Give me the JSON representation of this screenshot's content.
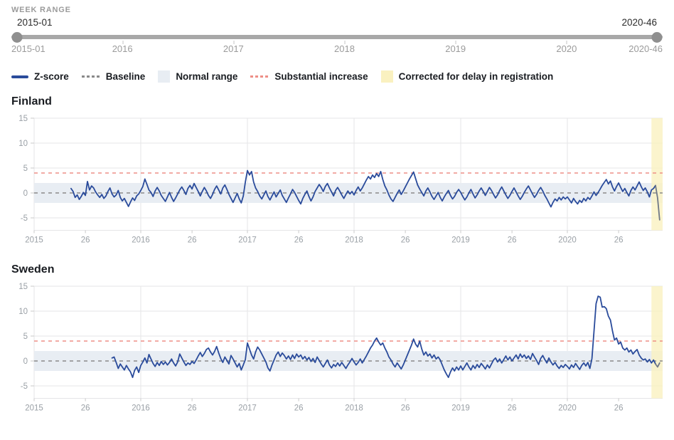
{
  "header": {
    "label": "WEEK RANGE"
  },
  "slider": {
    "start_value": "2015-01",
    "end_value": "2020-46",
    "total_weeks": 305,
    "axis_ticks": [
      {
        "label": "2015-01",
        "week": 0,
        "align": "left",
        "tickmark": false
      },
      {
        "label": "2016",
        "week": 52,
        "align": "center",
        "tickmark": true
      },
      {
        "label": "2017",
        "week": 104,
        "align": "center",
        "tickmark": true
      },
      {
        "label": "2018",
        "week": 156,
        "align": "center",
        "tickmark": true
      },
      {
        "label": "2019",
        "week": 208,
        "align": "center",
        "tickmark": true
      },
      {
        "label": "2020",
        "week": 260,
        "align": "center",
        "tickmark": true
      },
      {
        "label": "2020-46",
        "week": 305,
        "align": "right",
        "tickmark": false
      }
    ]
  },
  "colors": {
    "z_score": "#2a4b9b",
    "baseline": "#8a8a8a",
    "normal_range": "#e8edf3",
    "substantial_increase": "#ee8f87",
    "corrected_band": "#faf1c0",
    "grid": "#e5e5e7",
    "tickmark": "#c9c9c9",
    "axis_text": "#9aa0a6",
    "corrected_tail": "#6f7887"
  },
  "legend": {
    "items": [
      {
        "label": "Z-score",
        "swatch": "line",
        "color_key": "z_score"
      },
      {
        "label": "Baseline",
        "swatch": "dash",
        "color_key": "baseline"
      },
      {
        "label": "Normal range",
        "swatch": "box",
        "color_key": "normal_range"
      },
      {
        "label": "Substantial increase",
        "swatch": "dash",
        "color_key": "substantial_increase"
      },
      {
        "label": "Corrected for delay in registration",
        "swatch": "box",
        "color_key": "corrected_band"
      }
    ]
  },
  "chart_data": [
    {
      "type": "line",
      "title": "Finland",
      "series_name": "Z-score",
      "x_range": [
        "2015-01",
        "2020-46"
      ],
      "ylim": [
        -7.5,
        15
      ],
      "y_ticks": [
        15,
        10,
        5,
        0,
        -5
      ],
      "x_ticks": [
        {
          "label": "2015",
          "week": 0
        },
        {
          "label": "26",
          "week": 25
        },
        {
          "label": "2016",
          "week": 52
        },
        {
          "label": "26",
          "week": 77
        },
        {
          "label": "2017",
          "week": 104
        },
        {
          "label": "26",
          "week": 129
        },
        {
          "label": "2018",
          "week": 156
        },
        {
          "label": "26",
          "week": 181
        },
        {
          "label": "2019",
          "week": 208
        },
        {
          "label": "26",
          "week": 233
        },
        {
          "label": "2020",
          "week": 260
        },
        {
          "label": "26",
          "week": 285
        }
      ],
      "baseline": 0,
      "substantial_increase_threshold": 4,
      "normal_range": [
        -2,
        2
      ],
      "corrected_from_week": "2020-42",
      "corrected_week_offset": 301,
      "corrected_tail_points": 3,
      "start_week": "2015-19",
      "start_week_offset": 18,
      "values": [
        0.9,
        0.3,
        -0.9,
        -0.4,
        -1.3,
        -0.7,
        0.1,
        -0.5,
        2.3,
        0.6,
        1.4,
        1.0,
        0.2,
        -0.4,
        -0.9,
        -0.3,
        -1.1,
        -0.6,
        0.3,
        1.0,
        -0.2,
        -0.8,
        -0.4,
        0.5,
        -0.9,
        -1.6,
        -1.1,
        -1.9,
        -2.7,
        -1.8,
        -1.0,
        -1.5,
        -0.6,
        -0.2,
        0.5,
        1.3,
        2.8,
        1.7,
        0.6,
        0.1,
        -0.7,
        0.4,
        1.1,
        0.4,
        -0.5,
        -1.1,
        -1.7,
        -0.8,
        0.1,
        -0.9,
        -1.7,
        -1.0,
        -0.2,
        0.6,
        1.2,
        0.5,
        -0.3,
        0.9,
        1.5,
        0.8,
        1.9,
        1.1,
        0.3,
        -0.6,
        0.3,
        1.1,
        0.4,
        -0.5,
        -1.1,
        -0.3,
        0.7,
        1.4,
        0.6,
        -0.2,
        1.0,
        1.6,
        0.7,
        -0.3,
        -1.1,
        -1.9,
        -1.0,
        -0.1,
        -1.2,
        -2.0,
        -0.6,
        2.2,
        4.5,
        3.6,
        4.3,
        2.2,
        1.0,
        0.3,
        -0.6,
        -1.2,
        -0.4,
        0.4,
        -0.7,
        -1.4,
        -0.6,
        0.2,
        -0.8,
        -0.1,
        0.6,
        -0.5,
        -1.2,
        -1.9,
        -1.0,
        -0.2,
        0.7,
        0.1,
        -0.7,
        -1.5,
        -2.2,
        -1.1,
        -0.3,
        0.4,
        -0.7,
        -1.6,
        -0.8,
        0.3,
        1.0,
        1.7,
        1.1,
        0.3,
        1.3,
        1.9,
        1.0,
        0.2,
        -0.6,
        0.5,
        1.1,
        0.4,
        -0.4,
        -1.1,
        -0.3,
        0.4,
        -0.2,
        0.3,
        -0.4,
        0.5,
        1.2,
        0.4,
        1.0,
        1.8,
        2.6,
        3.3,
        2.8,
        3.6,
        3.1,
        3.9,
        3.3,
        4.3,
        2.7,
        1.4,
        0.6,
        -0.4,
        -1.2,
        -1.7,
        -0.9,
        -0.1,
        0.6,
        -0.3,
        0.4,
        1.2,
        2.0,
        2.8,
        3.5,
        4.2,
        2.9,
        1.6,
        0.8,
        0.1,
        -0.6,
        0.4,
        1.0,
        0.2,
        -0.7,
        -1.3,
        -0.6,
        0.1,
        -0.9,
        -1.6,
        -0.8,
        -0.1,
        0.5,
        -0.5,
        -1.2,
        -0.7,
        0.1,
        0.7,
        0.1,
        -0.7,
        -1.4,
        -0.8,
        0.0,
        0.7,
        -0.2,
        -1.0,
        -0.4,
        0.4,
        1.0,
        0.3,
        -0.5,
        0.3,
        1.1,
        0.5,
        -0.3,
        -1.0,
        -0.4,
        0.5,
        1.2,
        0.4,
        -0.4,
        -1.1,
        -0.5,
        0.3,
        1.0,
        0.2,
        -0.6,
        -1.3,
        -0.7,
        0.1,
        0.8,
        1.4,
        0.6,
        -0.2,
        -0.9,
        -0.3,
        0.5,
        1.1,
        0.4,
        -0.5,
        -1.2,
        -2.0,
        -2.8,
        -1.9,
        -1.2,
        -1.6,
        -0.9,
        -1.4,
        -0.8,
        -1.2,
        -0.8,
        -1.4,
        -2.0,
        -1.1,
        -1.7,
        -2.2,
        -1.5,
        -1.9,
        -1.1,
        -1.6,
        -0.9,
        -1.3,
        -0.6,
        0.2,
        -0.5,
        0.1,
        0.8,
        1.5,
        2.1,
        2.7,
        1.8,
        2.4,
        1.2,
        0.4,
        1.3,
        2.0,
        1.1,
        0.3,
        0.9,
        0.1,
        -0.6,
        0.5,
        1.2,
        0.6,
        1.4,
        2.2,
        1.3,
        0.5,
        1.0,
        0.2,
        -0.8,
        0.6,
        0.9,
        1.5,
        -1.0,
        -5.4
      ]
    },
    {
      "type": "line",
      "title": "Sweden",
      "series_name": "Z-score",
      "x_range": [
        "2015-01",
        "2020-46"
      ],
      "ylim": [
        -7.5,
        15
      ],
      "y_ticks": [
        15,
        10,
        5,
        0,
        -5
      ],
      "x_ticks": [
        {
          "label": "2015",
          "week": 0
        },
        {
          "label": "26",
          "week": 25
        },
        {
          "label": "2016",
          "week": 52
        },
        {
          "label": "26",
          "week": 77
        },
        {
          "label": "2017",
          "week": 104
        },
        {
          "label": "26",
          "week": 129
        },
        {
          "label": "2018",
          "week": 156
        },
        {
          "label": "26",
          "week": 181
        },
        {
          "label": "2019",
          "week": 208
        },
        {
          "label": "26",
          "week": 233
        },
        {
          "label": "2020",
          "week": 260
        },
        {
          "label": "26",
          "week": 285
        }
      ],
      "baseline": 0,
      "substantial_increase_threshold": 4,
      "normal_range": [
        -2,
        2
      ],
      "corrected_from_week": "2020-42",
      "corrected_week_offset": 301,
      "corrected_tail_points": 3,
      "start_week": "2015-39",
      "start_week_offset": 38,
      "values": [
        0.6,
        0.8,
        -0.3,
        -1.5,
        -0.6,
        -1.2,
        -1.8,
        -0.9,
        -1.6,
        -2.2,
        -3.3,
        -1.9,
        -1.2,
        -2.3,
        -0.9,
        -0.2,
        0.6,
        -0.4,
        1.3,
        0.4,
        -0.5,
        -1.1,
        -0.3,
        -0.9,
        -0.1,
        -0.7,
        -0.2,
        -0.8,
        -0.3,
        0.4,
        -0.4,
        -1.0,
        -0.2,
        1.4,
        0.6,
        -0.2,
        -0.9,
        -0.4,
        -0.7,
        -0.1,
        -0.5,
        0.2,
        1.0,
        1.7,
        0.9,
        1.5,
        2.3,
        2.6,
        1.8,
        1.2,
        1.9,
        2.9,
        1.6,
        0.5,
        -0.3,
        0.8,
        0.1,
        -0.6,
        1.1,
        0.4,
        -0.4,
        -1.2,
        -0.5,
        -1.8,
        -0.8,
        0.3,
        3.6,
        2.4,
        1.2,
        0.4,
        1.8,
        2.8,
        2.2,
        1.4,
        0.6,
        -0.2,
        -1.4,
        -2.0,
        -0.8,
        0.2,
        1.2,
        1.8,
        0.9,
        1.6,
        1.1,
        0.4,
        1.0,
        0.3,
        1.2,
        0.5,
        1.4,
        0.8,
        1.2,
        0.4,
        0.9,
        0.2,
        0.7,
        -0.1,
        0.5,
        -0.3,
        0.8,
        0.1,
        -0.6,
        -1.2,
        -0.5,
        0.2,
        -0.8,
        -1.4,
        -0.7,
        -1.1,
        -0.4,
        -1.0,
        -0.3,
        -0.9,
        -1.5,
        -0.8,
        -0.2,
        0.5,
        -0.2,
        -0.8,
        -0.3,
        0.4,
        -0.4,
        0.3,
        1.0,
        1.8,
        2.6,
        3.2,
        4.0,
        4.6,
        3.8,
        3.2,
        3.6,
        2.6,
        1.8,
        0.8,
        0.2,
        -0.6,
        -1.2,
        -0.4,
        -1.0,
        -1.6,
        -0.8,
        0.2,
        1.2,
        2.2,
        3.2,
        4.4,
        3.4,
        2.8,
        4.0,
        2.4,
        1.2,
        1.8,
        1.0,
        1.4,
        0.6,
        1.2,
        0.4,
        0.8,
        0.2,
        -0.8,
        -1.8,
        -2.6,
        -3.3,
        -2.2,
        -1.4,
        -2.0,
        -1.2,
        -1.8,
        -1.0,
        -1.8,
        -1.1,
        -0.4,
        -1.2,
        -1.8,
        -0.9,
        -1.5,
        -0.7,
        -1.3,
        -0.5,
        -1.0,
        -1.6,
        -0.8,
        -1.4,
        -0.6,
        0.2,
        0.6,
        -0.2,
        0.4,
        -0.4,
        0.3,
        1.0,
        0.2,
        0.8,
        0.0,
        0.6,
        1.2,
        0.4,
        1.4,
        0.7,
        1.2,
        0.5,
        1.0,
        0.3,
        1.5,
        0.8,
        0.1,
        -0.7,
        0.5,
        1.1,
        0.3,
        -0.4,
        0.6,
        -0.2,
        -0.8,
        -0.3,
        -1.0,
        -1.5,
        -0.9,
        -1.3,
        -0.7,
        -1.1,
        -1.6,
        -0.8,
        -1.3,
        -0.5,
        -1.1,
        -1.7,
        -0.9,
        -0.4,
        -1.0,
        -0.3,
        -1.5,
        0.5,
        6.0,
        11.5,
        13.0,
        12.8,
        10.8,
        10.9,
        10.5,
        9.0,
        8.2,
        6.0,
        4.2,
        4.6,
        3.4,
        3.8,
        2.6,
        2.2,
        2.6,
        1.8,
        2.2,
        1.4,
        1.9,
        2.3,
        1.2,
        0.6,
        0.2,
        0.4,
        -0.2,
        0.3,
        -0.4,
        0.2,
        -0.6,
        -1.2,
        -0.4
      ]
    }
  ]
}
